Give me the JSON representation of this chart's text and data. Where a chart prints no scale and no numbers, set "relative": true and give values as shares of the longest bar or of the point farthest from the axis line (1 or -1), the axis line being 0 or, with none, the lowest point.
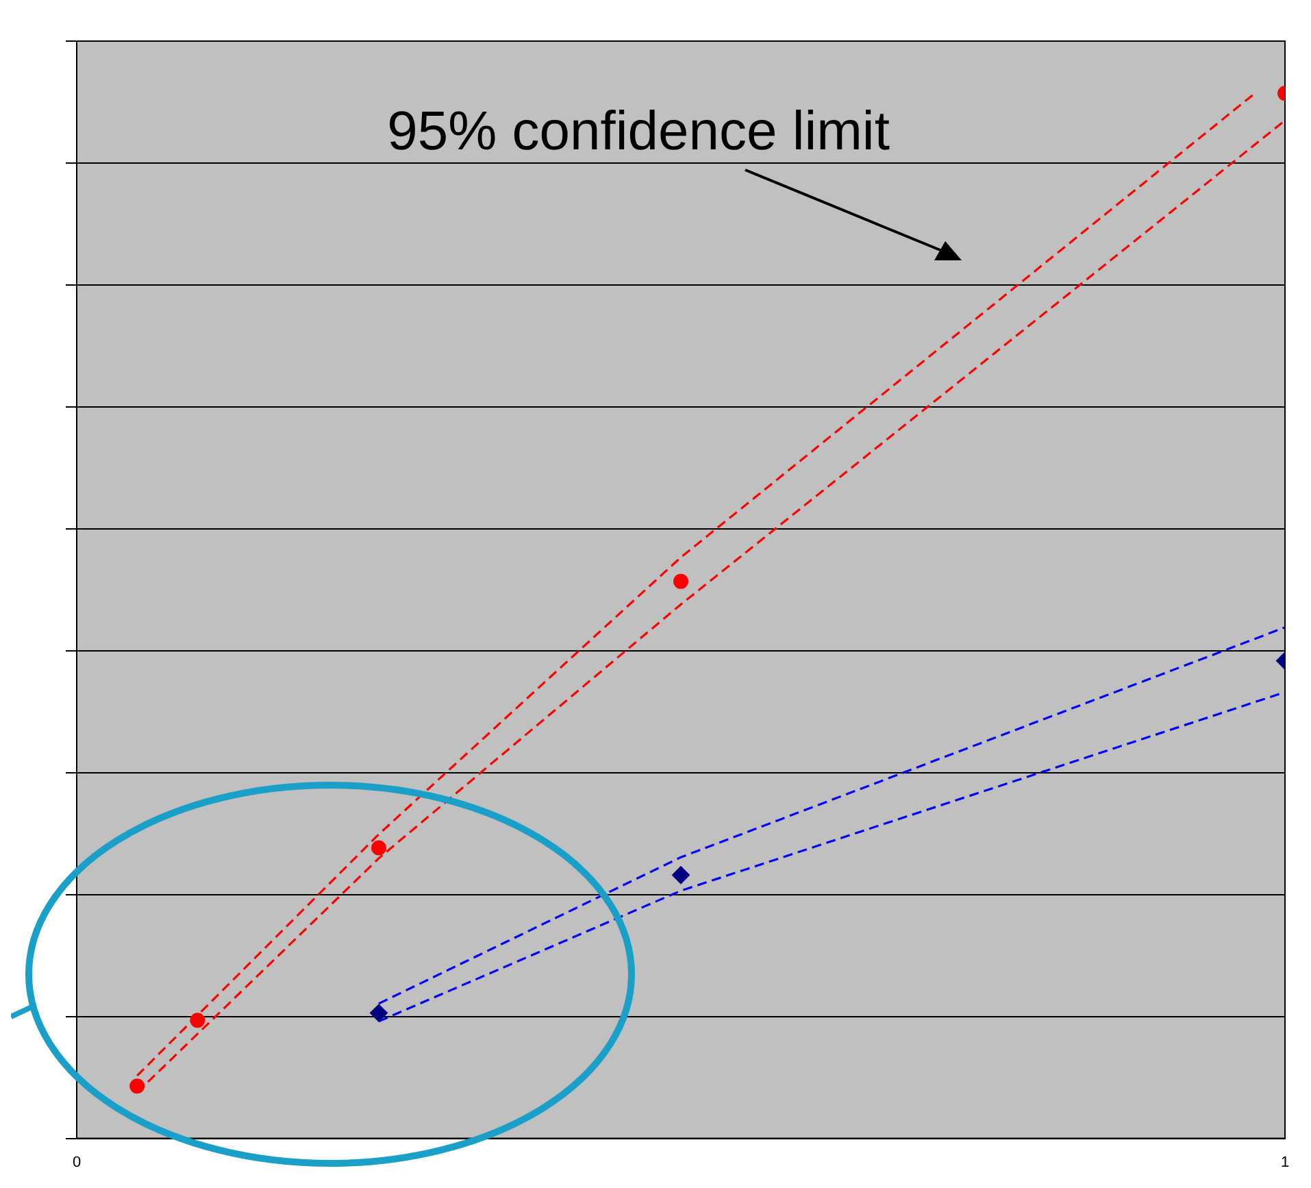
{
  "chart_data": {
    "type": "scatter",
    "relative": true,
    "xlim": [
      0,
      1
    ],
    "xticks": [
      0,
      1
    ],
    "tick_labels": "x",
    "grid": "y",
    "legend": false,
    "annotations": [
      "95% confidence limit"
    ],
    "series": [
      {
        "color": "#ff0000",
        "marker": "circle",
        "x": [
          0.05,
          0.1,
          0.25,
          0.5,
          1.0
        ],
        "values": [
          0.05,
          0.113,
          0.278,
          0.533,
          1.0
        ]
      },
      {
        "color": "#000080",
        "marker": "diamond",
        "x": [
          0.25,
          0.5,
          1.0
        ],
        "values": [
          0.12,
          0.252,
          0.457
        ]
      },
      {
        "type": "line",
        "color": "#ff0000",
        "line_style": "dashed",
        "marker": "none",
        "x": [
          0.05,
          0.25,
          0.5,
          0.975
        ],
        "values": [
          0.06,
          0.291,
          0.556,
          1.0
        ]
      },
      {
        "type": "line",
        "color": "#ff0000",
        "line_style": "dashed",
        "marker": "none",
        "x": [
          0.05,
          0.25,
          0.5,
          1.0
        ],
        "values": [
          0.044,
          0.268,
          0.511,
          0.974
        ]
      },
      {
        "type": "line",
        "color": "#0000ff",
        "line_style": "dashed",
        "marker": "none",
        "x": [
          0.25,
          0.5,
          1.0
        ],
        "values": [
          0.129,
          0.269,
          0.489
        ]
      },
      {
        "type": "line",
        "color": "#0000ff",
        "line_style": "dashed",
        "marker": "none",
        "x": [
          0.25,
          0.5,
          1.0
        ],
        "values": [
          0.112,
          0.237,
          0.427
        ]
      }
    ]
  }
}
